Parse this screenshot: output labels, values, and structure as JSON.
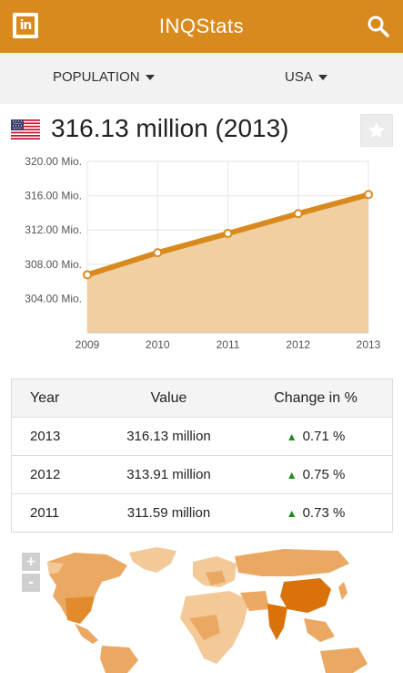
{
  "header": {
    "title": "INQStats",
    "logo_text": "in",
    "search_icon": "search-icon"
  },
  "filters": {
    "indicator": "POPULATION",
    "country": "USA"
  },
  "headline": {
    "value": "316.13 million (2013)",
    "flag_icon": "us-flag-icon",
    "favorite_icon": "star-icon"
  },
  "colors": {
    "accent": "#d98a1e",
    "area": "#f0cfa0",
    "up": "#1e8c1e"
  },
  "chart_data": {
    "type": "area",
    "x": [
      "2009",
      "2010",
      "2011",
      "2012",
      "2013"
    ],
    "y": [
      306.77,
      309.35,
      311.59,
      313.91,
      316.13
    ],
    "ylim": [
      300,
      320
    ],
    "yticks": [
      {
        "value": 320,
        "label": "320.00 Mio."
      },
      {
        "value": 316,
        "label": "316.00 Mio."
      },
      {
        "value": 312,
        "label": "312.00 Mio."
      },
      {
        "value": 308,
        "label": "308.00 Mio."
      },
      {
        "value": 304,
        "label": "304.00 Mio."
      }
    ],
    "grid": true
  },
  "table": {
    "headers": [
      "Year",
      "Value",
      "Change in %"
    ],
    "rows": [
      {
        "year": "2013",
        "value": "316.13 million",
        "change": "0.71 %"
      },
      {
        "year": "2012",
        "value": "313.91 million",
        "change": "0.75 %"
      },
      {
        "year": "2011",
        "value": "311.59 million",
        "change": "0.73 %"
      }
    ],
    "trend_icon": "up-arrow-icon"
  },
  "map": {
    "zoom_in": "+",
    "zoom_out": "-"
  }
}
